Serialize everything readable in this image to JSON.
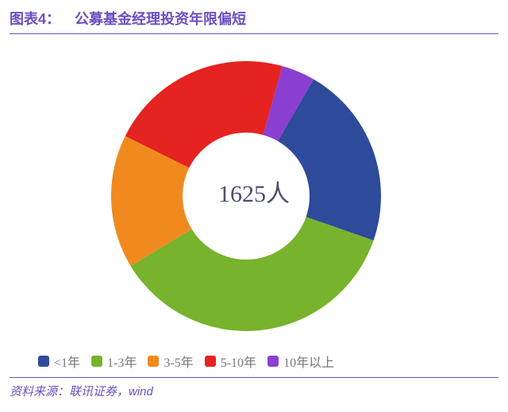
{
  "title": {
    "prefix": "图表4：",
    "text": "公募基金经理投资年限偏短",
    "color": "#6a4fc3",
    "rule_color": "#6a4fc3",
    "fontsize": 18
  },
  "chart": {
    "type": "donut",
    "center_label": "1625人",
    "center_label_color": "#4a506a",
    "center_label_fontsize": 30,
    "inner_radius": 80,
    "outer_radius": 170,
    "start_angle_deg": 30,
    "background_color": "#ffffff",
    "categories": [
      "<1年",
      "1-3年",
      "3-5年",
      "5-10年",
      "10年以上"
    ],
    "values": [
      22,
      36,
      16,
      22,
      4
    ],
    "colors": [
      "#2e4a9a",
      "#77b32c",
      "#f08a1e",
      "#e52320",
      "#8a3fd1"
    ]
  },
  "legend": {
    "rule_color": "#6a4fc3",
    "items": [
      "<1年",
      "1-3年",
      "3-5年",
      "5-10年",
      "10年以上"
    ],
    "text_color": "#777777",
    "fontsize": 16
  },
  "source": {
    "label": "资料来源：",
    "text": "联讯证券，wind",
    "color": "#6a4fc3",
    "fontsize": 15
  }
}
